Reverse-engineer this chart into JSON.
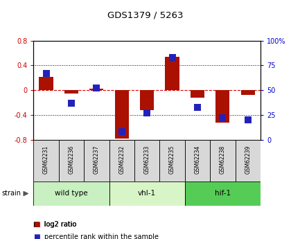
{
  "title": "GDS1379 / 5263",
  "samples": [
    "GSM62231",
    "GSM62236",
    "GSM62237",
    "GSM62232",
    "GSM62233",
    "GSM62235",
    "GSM62234",
    "GSM62238",
    "GSM62239"
  ],
  "log2_ratio": [
    0.22,
    -0.05,
    0.02,
    -0.78,
    -0.32,
    0.54,
    -0.12,
    -0.52,
    -0.07
  ],
  "percentile_rank": [
    67,
    37,
    52,
    8,
    27,
    83,
    33,
    22,
    20
  ],
  "groups": [
    {
      "label": "wild type",
      "start": 0,
      "end": 3,
      "color": "#c8f0c0"
    },
    {
      "label": "vhl-1",
      "start": 3,
      "end": 6,
      "color": "#d8f5c8"
    },
    {
      "label": "hif-1",
      "start": 6,
      "end": 9,
      "color": "#55cc55"
    }
  ],
  "ylim": [
    -0.8,
    0.8
  ],
  "yticks_left": [
    -0.8,
    -0.4,
    0.0,
    0.4,
    0.8
  ],
  "yticks_right": [
    0,
    25,
    50,
    75,
    100
  ],
  "bar_color": "#aa1100",
  "dot_color": "#2222bb",
  "hline_color": "#dd0000",
  "grid_color": "#000000",
  "bar_width": 0.55,
  "dot_size": 45,
  "sample_box_color": "#d8d8d8",
  "left_axis_color": "#cc0000",
  "right_axis_color": "#0000cc"
}
